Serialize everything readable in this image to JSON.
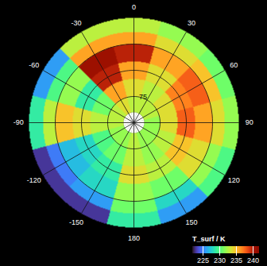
{
  "chart_data": {
    "type": "polar_map",
    "colorbar": {
      "label": "T_surf / K",
      "range": [
        222,
        242
      ],
      "ticks": [
        225,
        230,
        235,
        240
      ]
    },
    "lat_range": [
      90,
      30
    ],
    "lat_bands": [
      [
        90,
        84
      ],
      [
        84,
        75
      ],
      [
        75,
        65
      ],
      [
        65,
        55
      ],
      [
        55,
        45
      ],
      [
        45,
        38
      ],
      [
        38,
        30
      ]
    ],
    "lon_sectors": [
      0,
      30,
      60,
      90,
      120,
      150,
      180,
      -150,
      -120,
      -90,
      -60,
      -30
    ],
    "values": [
      [
        null,
        null,
        null,
        null,
        null,
        null,
        null,
        null,
        null,
        null,
        null,
        null
      ],
      [
        233,
        233,
        233,
        232,
        232,
        232,
        233,
        232,
        232,
        233,
        233,
        234
      ],
      [
        234,
        233,
        234,
        234,
        233,
        232,
        233,
        231,
        230,
        233,
        231,
        236
      ],
      [
        236,
        234,
        237,
        238,
        235,
        233,
        234,
        229,
        228,
        234,
        229,
        240
      ],
      [
        240,
        236,
        238,
        236,
        234,
        231,
        232,
        228,
        227,
        235,
        232,
        241
      ],
      [
        236,
        234,
        235,
        234,
        232,
        228,
        231,
        226,
        225,
        233,
        230,
        236
      ],
      [
        233,
        232,
        231,
        232,
        230,
        226,
        229,
        223,
        223,
        229,
        226,
        233
      ]
    ],
    "graticule": {
      "lat": [
        75,
        60,
        45
      ],
      "lon": [
        0,
        30,
        60,
        90,
        120,
        150,
        180,
        -150,
        -120,
        -90,
        -60,
        -30
      ]
    },
    "lon_labels": [
      0,
      30,
      60,
      90,
      120,
      150,
      180,
      -150,
      -120,
      -90,
      -60,
      -30
    ],
    "lat_labels": [
      75
    ],
    "tick_labels": false
  }
}
